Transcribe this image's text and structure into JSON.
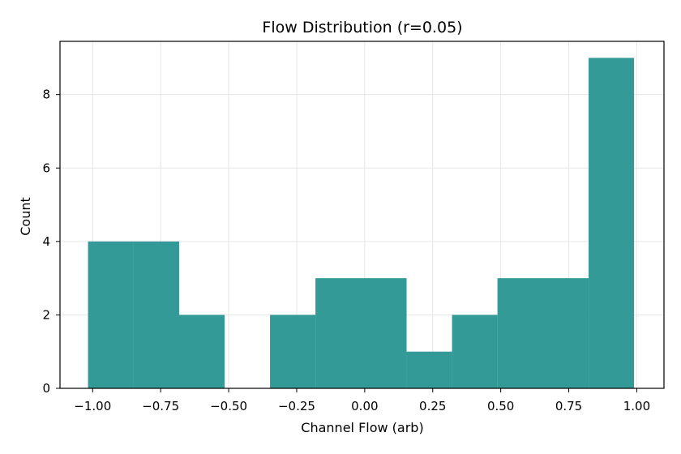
{
  "chart_data": {
    "type": "bar",
    "title": "Flow Distribution (r=0.05)",
    "xlabel": "Channel Flow (arb)",
    "ylabel": "Count",
    "xlim": [
      -1.12,
      1.1
    ],
    "ylim": [
      0,
      9.45
    ],
    "x_ticks": [
      -1.0,
      -0.75,
      -0.5,
      -0.25,
      0.0,
      0.25,
      0.5,
      0.75,
      1.0
    ],
    "x_tick_labels": [
      "−1.00",
      "−0.75",
      "−0.50",
      "−0.25",
      "0.00",
      "0.25",
      "0.50",
      "0.75",
      "1.00"
    ],
    "y_ticks": [
      0,
      2,
      4,
      6,
      8
    ],
    "y_tick_labels": [
      "0",
      "2",
      "4",
      "6",
      "8"
    ],
    "bin_edges": [
      -1.017,
      -0.849,
      -0.682,
      -0.515,
      -0.348,
      -0.181,
      -0.013,
      0.154,
      0.321,
      0.488,
      0.656,
      0.823,
      0.99
    ],
    "values": [
      4,
      4,
      2,
      0,
      2,
      3,
      3,
      1,
      2,
      3,
      3,
      9
    ],
    "grid": true,
    "colors": {
      "bar": "#339a98",
      "grid": "#e6e6e6",
      "axis": "#000000"
    }
  }
}
